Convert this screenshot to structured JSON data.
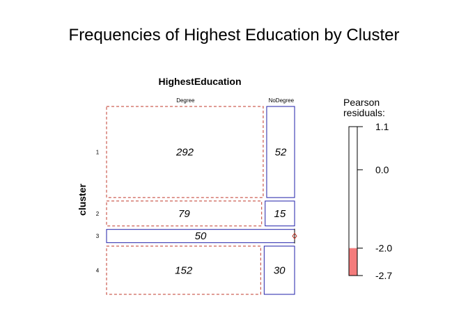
{
  "chart_data": {
    "type": "mosaic",
    "title": "Frequencies of Highest Education by Cluster",
    "column_variable": "HighestEducation",
    "row_variable": "cluster",
    "columns": [
      "Degree",
      "NoDegree"
    ],
    "rows": [
      "1",
      "2",
      "3",
      "4"
    ],
    "counts": [
      [
        292,
        52
      ],
      [
        79,
        15
      ],
      [
        50,
        0
      ],
      [
        152,
        30
      ]
    ],
    "colors": {
      "negative_border": "#c0392b",
      "positive_border": "#1f1fa8",
      "low_fill": "#f47c7c",
      "frame": "#000000"
    },
    "legend": {
      "title_lines": [
        "Pearson",
        "residuals:"
      ],
      "max": 1.1,
      "min": -2.7,
      "ticks": [
        {
          "value": 1.1,
          "label": "1.1"
        },
        {
          "value": 0.0,
          "label": "0.0"
        },
        {
          "value": -2.0,
          "label": "-2.0"
        },
        {
          "value": -2.7,
          "label": "-2.7"
        }
      ],
      "shaded_range": [
        -2.7,
        -2.0
      ]
    }
  }
}
